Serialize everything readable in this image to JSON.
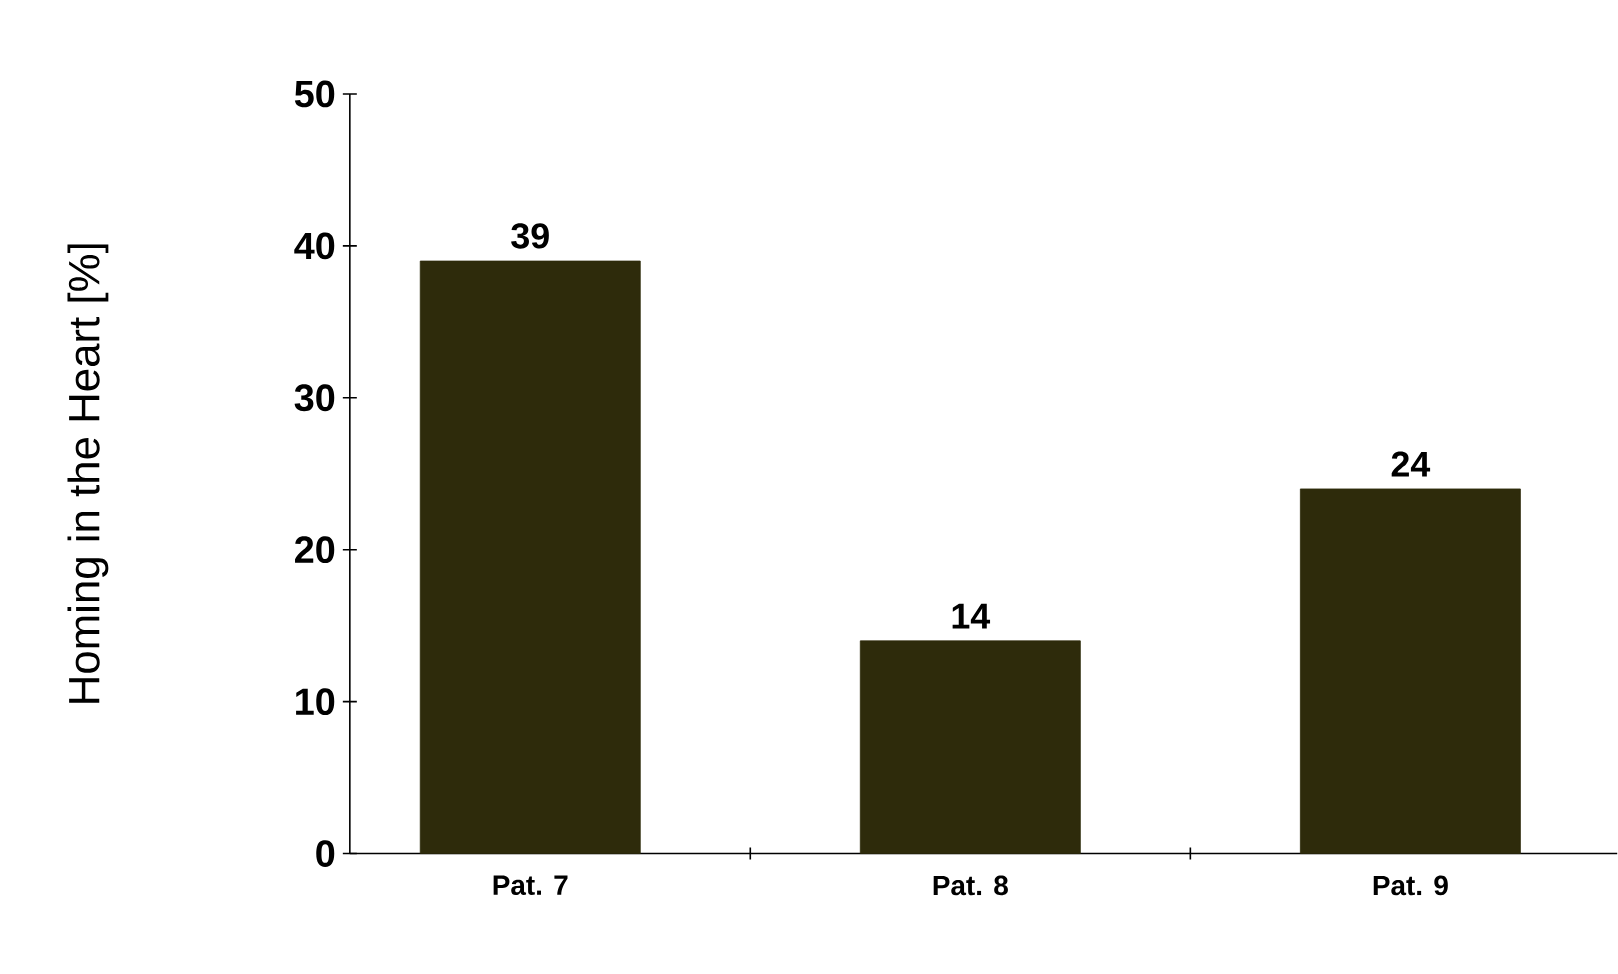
{
  "chart_data": {
    "type": "bar",
    "ylabel": "Homing in the Heart [%]",
    "categories": [
      "Pat. 7",
      "Pat. 8",
      "Pat. 9"
    ],
    "values": [
      39,
      14,
      24
    ],
    "color": "#2e2b0b",
    "ylim": [
      0,
      50
    ],
    "yticks": [
      0,
      10,
      20,
      30,
      40,
      50
    ],
    "data_labels": true
  }
}
